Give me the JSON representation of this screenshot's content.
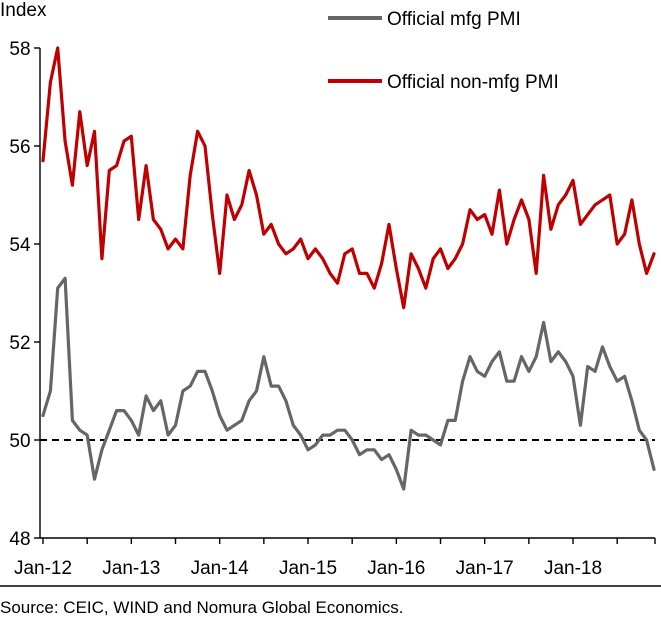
{
  "chart_data": {
    "type": "line",
    "ylabel": "Index",
    "ylim": [
      48,
      58
    ],
    "yticks": [
      "48",
      "50",
      "52",
      "54",
      "56",
      "58"
    ],
    "x_ticks": [
      "Jan-12",
      "Jan-13",
      "Jan-14",
      "Jan-15",
      "Jan-16",
      "Jan-17",
      "Jan-18"
    ],
    "x_start": "2012-01",
    "legend_position": "top-right",
    "reference_line": {
      "y": 50,
      "style": "dashed",
      "color": "#000000"
    },
    "series": [
      {
        "name": "Official mfg PMI",
        "color": "#666666",
        "values": [
          50.5,
          51.0,
          53.1,
          53.3,
          50.4,
          50.2,
          50.1,
          49.2,
          49.8,
          50.2,
          50.6,
          50.6,
          50.4,
          50.1,
          50.9,
          50.6,
          50.8,
          50.1,
          50.3,
          51.0,
          51.1,
          51.4,
          51.4,
          51.0,
          50.5,
          50.2,
          50.3,
          50.4,
          50.8,
          51.0,
          51.7,
          51.1,
          51.1,
          50.8,
          50.3,
          50.1,
          49.8,
          49.9,
          50.1,
          50.1,
          50.2,
          50.2,
          50.0,
          49.7,
          49.8,
          49.8,
          49.6,
          49.7,
          49.4,
          49.0,
          50.2,
          50.1,
          50.1,
          50.0,
          49.9,
          50.4,
          50.4,
          51.2,
          51.7,
          51.4,
          51.3,
          51.6,
          51.8,
          51.2,
          51.2,
          51.7,
          51.4,
          51.7,
          52.4,
          51.6,
          51.8,
          51.6,
          51.3,
          50.3,
          51.5,
          51.4,
          51.9,
          51.5,
          51.2,
          51.3,
          50.8,
          50.2,
          50.0,
          49.4
        ]
      },
      {
        "name": "Official non-mfg PMI",
        "color": "#c00000",
        "values": [
          55.7,
          57.3,
          58.0,
          56.1,
          55.2,
          56.7,
          55.6,
          56.3,
          53.7,
          55.5,
          55.6,
          56.1,
          56.2,
          54.5,
          55.6,
          54.5,
          54.3,
          53.9,
          54.1,
          53.9,
          55.4,
          56.3,
          56.0,
          54.6,
          53.4,
          55.0,
          54.5,
          54.8,
          55.5,
          55.0,
          54.2,
          54.4,
          54.0,
          53.8,
          53.9,
          54.1,
          53.7,
          53.9,
          53.7,
          53.4,
          53.2,
          53.8,
          53.9,
          53.4,
          53.4,
          53.1,
          53.6,
          54.4,
          53.5,
          52.7,
          53.8,
          53.5,
          53.1,
          53.7,
          53.9,
          53.5,
          53.7,
          54.0,
          54.7,
          54.5,
          54.6,
          54.2,
          55.1,
          54.0,
          54.5,
          54.9,
          54.5,
          53.4,
          55.4,
          54.3,
          54.8,
          55.0,
          55.3,
          54.4,
          54.6,
          54.8,
          54.9,
          55.0,
          54.0,
          54.2,
          54.9,
          54.0,
          53.4,
          53.8
        ]
      }
    ]
  },
  "source_note": "Source: CEIC, WIND and Nomura Global Economics."
}
